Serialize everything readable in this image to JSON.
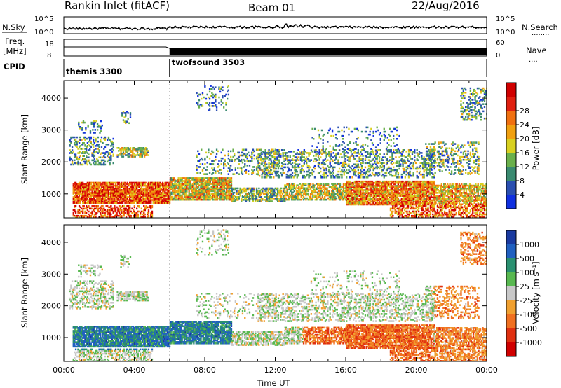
{
  "header": {
    "station": "Rankin Inlet (fitACF)",
    "beam": "Beam 01",
    "date": "22/Aug/2016"
  },
  "strip_labels": {
    "nsky": "N.Sky",
    "nsearch": "N.Search",
    "nsearch_dots": "........",
    "freq_line1": "Freq.",
    "freq_line2": "[MHz]",
    "nave": "Nave",
    "nave_dots": "....",
    "cpid": "CPID",
    "nsky_top": "10^5",
    "nsky_bottom": "10^0",
    "nsearch_top": "10^5",
    "nsearch_bottom": "10^0",
    "freq_top": "18",
    "freq_bottom": "8",
    "nave_top": "60",
    "nave_bottom": "0"
  },
  "cpid_programs": [
    {
      "label": "themis 3300",
      "start_hour": 0,
      "end_hour": 6.0
    },
    {
      "label": "twofsound 3503",
      "start_hour": 6.0,
      "end_hour": 24
    }
  ],
  "chart_data": [
    {
      "type": "heatmap",
      "name": "power",
      "ylabel": "Slant Range [km]",
      "xlabel": "",
      "xlim": [
        0,
        24
      ],
      "ylim": [
        250,
        4550
      ],
      "yticks": [
        1000,
        2000,
        3000,
        4000
      ],
      "colorbar": {
        "label": "Power [dB]",
        "ticks": [
          "4",
          "8",
          "12",
          "16",
          "20",
          "24",
          "28"
        ],
        "colors": [
          "#1030e0",
          "#2a4fb0",
          "#3a8a70",
          "#6ab04c",
          "#d8d020",
          "#f0a010",
          "#f07010",
          "#e02010",
          "#d00000"
        ]
      }
    },
    {
      "type": "heatmap",
      "name": "velocity",
      "ylabel": "Slant Range [km]",
      "xlabel": "Time UT",
      "xlim": [
        0,
        24
      ],
      "ylim": [
        250,
        4550
      ],
      "yticks": [
        1000,
        2000,
        3000,
        4000
      ],
      "xticks": [
        "00:00",
        "04:00",
        "08:00",
        "12:00",
        "16:00",
        "20:00",
        "00:00"
      ],
      "colorbar": {
        "label": "Velocity [m s⁻¹]",
        "ticks": [
          "1000",
          "500",
          "100",
          "25",
          "-25",
          "-100",
          "-500",
          "-1000"
        ],
        "colors": [
          "#1a3aa0",
          "#2060c0",
          "#2a9070",
          "#58b850",
          "#c8c8c8",
          "#f0a030",
          "#f07020",
          "#e03010",
          "#d00000"
        ]
      }
    }
  ]
}
